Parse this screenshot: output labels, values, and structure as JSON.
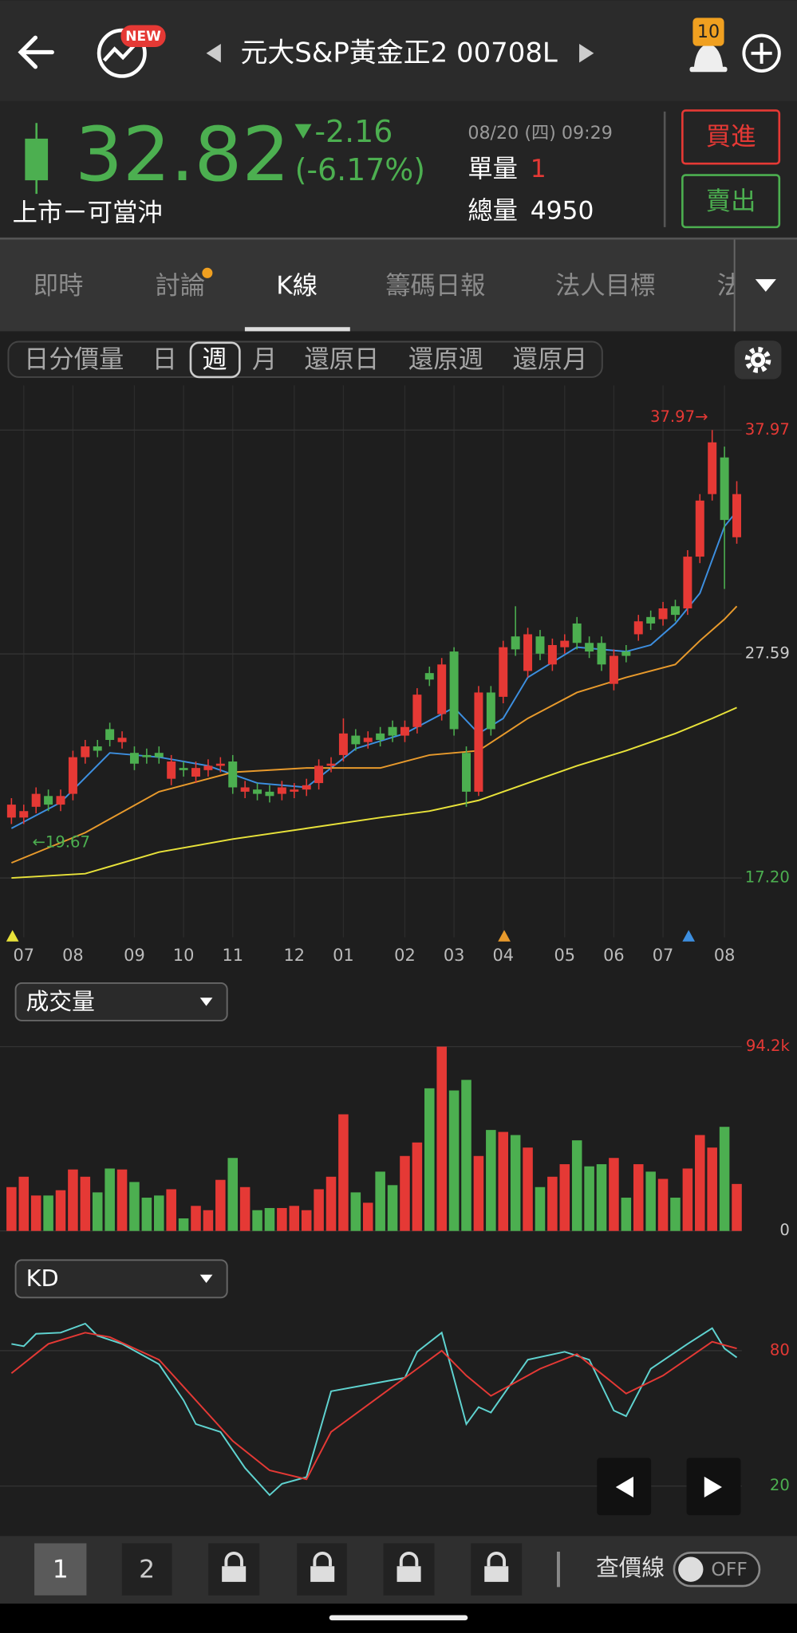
{
  "header": {
    "badge": "NEW",
    "title": "元大S&P黃金正2 00708L",
    "alerts": "10"
  },
  "quote": {
    "price": "32.82",
    "change": "-2.16",
    "change_pct": "(-6.17%)",
    "time": "08/20 (四) 09:29",
    "unit_label": "單量",
    "unit_volume": "1",
    "total_label": "總量",
    "total_volume": "4950",
    "market": "上市ㄧ可當沖",
    "buy": "買進",
    "sell": "賣出"
  },
  "tabs": [
    "即時",
    "討論",
    "K線",
    "籌碼日報",
    "法人目標",
    "法"
  ],
  "periods": [
    "日分價量",
    "日",
    "週",
    "月",
    "還原日",
    "還原週",
    "還原月"
  ],
  "bottom": {
    "pages": [
      "1",
      "2"
    ],
    "price_line": "查價線",
    "toggle": "OFF"
  },
  "chart_data": [
    {
      "type": "candlestick",
      "categories": [
        null,
        "07",
        null,
        null,
        null,
        "08",
        null,
        null,
        null,
        null,
        "09",
        null,
        null,
        null,
        "10",
        null,
        null,
        null,
        "11",
        null,
        null,
        null,
        null,
        "12",
        null,
        null,
        null,
        "01",
        null,
        null,
        null,
        null,
        "02",
        null,
        null,
        null,
        "03",
        null,
        null,
        null,
        "04",
        null,
        null,
        null,
        null,
        "05",
        null,
        null,
        null,
        "06",
        null,
        null,
        null,
        "07",
        null,
        null,
        null,
        null,
        "08",
        null
      ],
      "open": [
        20.0,
        20.0,
        20.5,
        21.0,
        20.6,
        21.1,
        22.8,
        23.3,
        24.1,
        23.5,
        23.0,
        22.9,
        23.0,
        21.8,
        22.3,
        21.9,
        22.2,
        22.4,
        22.6,
        21.2,
        21.3,
        21.2,
        21.1,
        21.2,
        21.3,
        21.6,
        22.4,
        22.9,
        23.8,
        23.5,
        23.9,
        24.2,
        23.8,
        24.2,
        26.7,
        24.8,
        27.7,
        23.0,
        21.2,
        25.8,
        25.6,
        28.4,
        26.8,
        28.4,
        27.1,
        27.9,
        29.0,
        28.1,
        28.1,
        26.2,
        27.7,
        28.5,
        29.3,
        29.2,
        29.8,
        29.7,
        32.1,
        35.0,
        36.7,
        33.0
      ],
      "high": [
        20.9,
        20.6,
        21.4,
        21.3,
        21.3,
        23.1,
        23.6,
        23.6,
        24.4,
        24.0,
        23.3,
        23.2,
        23.3,
        22.9,
        22.6,
        22.6,
        22.7,
        22.8,
        22.9,
        21.7,
        21.6,
        21.5,
        21.7,
        21.6,
        21.8,
        22.7,
        22.8,
        24.6,
        24.1,
        24.0,
        24.2,
        24.5,
        24.5,
        26.0,
        27.0,
        27.4,
        27.9,
        23.3,
        26.1,
        26.1,
        28.2,
        29.8,
        28.8,
        28.7,
        28.3,
        28.5,
        29.3,
        28.4,
        28.4,
        27.8,
        28.0,
        29.4,
        29.6,
        30.0,
        30.1,
        32.4,
        35.0,
        37.97,
        37.2,
        35.6
      ],
      "low": [
        19.7,
        19.7,
        20.2,
        20.3,
        20.3,
        20.8,
        22.5,
        22.8,
        23.3,
        23.2,
        22.2,
        22.5,
        22.5,
        21.5,
        21.9,
        21.6,
        21.9,
        22.1,
        21.1,
        20.9,
        20.8,
        20.7,
        20.8,
        20.9,
        21.0,
        21.3,
        22.1,
        22.6,
        23.1,
        23.2,
        23.3,
        23.5,
        23.5,
        23.9,
        26.1,
        24.5,
        23.8,
        20.5,
        21.0,
        23.8,
        25.3,
        27.5,
        26.5,
        27.3,
        26.8,
        27.6,
        27.8,
        27.4,
        26.8,
        25.9,
        27.2,
        28.2,
        28.7,
        28.9,
        29.1,
        29.4,
        31.8,
        34.7,
        30.6,
        32.7
      ],
      "close": [
        20.6,
        20.3,
        21.1,
        20.6,
        21.0,
        22.8,
        23.3,
        23.1,
        23.6,
        23.7,
        22.5,
        22.8,
        22.8,
        22.6,
        22.2,
        22.3,
        22.4,
        22.5,
        21.4,
        21.4,
        21.1,
        21.0,
        21.4,
        21.3,
        21.5,
        22.4,
        22.5,
        23.9,
        23.4,
        23.7,
        23.6,
        23.8,
        24.2,
        25.7,
        26.4,
        27.1,
        24.1,
        21.2,
        25.8,
        24.1,
        27.9,
        27.8,
        28.5,
        27.6,
        28.0,
        28.2,
        28.1,
        27.7,
        27.1,
        27.5,
        27.5,
        29.1,
        29.0,
        29.7,
        29.4,
        32.1,
        34.7,
        37.4,
        33.8,
        35.0
      ],
      "up_color": "#e53935",
      "down_color": "#4caf50",
      "ma": [
        {
          "color": "#3d8fe0",
          "x": [
            0,
            4,
            8,
            12,
            16,
            20,
            24,
            28,
            32,
            36,
            38,
            40,
            42,
            46,
            50,
            52,
            54,
            56,
            58,
            59
          ],
          "values": [
            19.5,
            20.7,
            23.0,
            22.8,
            22.4,
            21.6,
            21.4,
            23.2,
            23.9,
            25.1,
            23.9,
            24.6,
            26.5,
            27.9,
            27.7,
            28.0,
            29.0,
            30.4,
            33.5,
            34.2
          ]
        },
        {
          "color": "#e89a2c",
          "x": [
            0,
            6,
            12,
            18,
            24,
            30,
            34,
            38,
            42,
            46,
            50,
            54,
            56,
            58,
            59
          ],
          "values": [
            17.9,
            19.3,
            21.2,
            22.1,
            22.3,
            22.3,
            22.9,
            23.1,
            24.6,
            25.8,
            26.5,
            27.1,
            28.2,
            29.2,
            29.8
          ]
        },
        {
          "color": "#e8e23a",
          "x": [
            0,
            6,
            12,
            18,
            24,
            30,
            34,
            38,
            42,
            46,
            50,
            54,
            57,
            59
          ],
          "values": [
            17.2,
            17.4,
            18.4,
            19.0,
            19.5,
            20.0,
            20.3,
            20.8,
            21.6,
            22.4,
            23.1,
            23.9,
            24.6,
            25.1
          ]
        }
      ],
      "annotations": [
        {
          "text": "37.97→",
          "color": "#e53935"
        },
        {
          "text": "←19.67",
          "color": "#4caf50"
        }
      ],
      "ylim": [
        14.69,
        40.04
      ],
      "yticks": [
        {
          "value": 37.97,
          "label": "37.97"
        },
        27.59,
        {
          "value": 17.2,
          "label": "17.20"
        }
      ],
      "ytick_colors": [
        "#e53935",
        "#cccccc",
        "#4caf50"
      ],
      "grid": true
    },
    {
      "type": "bar",
      "title": "成交量",
      "values": [
        22.4,
        27.7,
        18.1,
        18.1,
        20.8,
        31.4,
        27.7,
        19.7,
        31.9,
        31.4,
        25.0,
        17.0,
        18.1,
        21.3,
        6.4,
        12.8,
        10.6,
        26.1,
        37.3,
        22.4,
        10.6,
        11.7,
        11.7,
        12.8,
        10.6,
        21.3,
        27.7,
        59.6,
        19.7,
        14.4,
        30.3,
        23.4,
        38.3,
        45.2,
        72.9,
        94.2,
        71.8,
        77.2,
        38.3,
        51.6,
        50.6,
        49.0,
        42.6,
        22.4,
        27.7,
        34.1,
        46.3,
        33.0,
        34.1,
        37.3,
        17.0,
        34.1,
        30.3,
        26.6,
        17.0,
        31.9,
        49.0,
        42.6,
        53.2,
        24.0
      ],
      "ylim": [
        0,
        94.2
      ],
      "yticks": [
        {
          "value": 94.2,
          "label": "94.2k"
        },
        0
      ],
      "ytick_colors": [
        "#e53935",
        "#cccccc"
      ],
      "grid": true
    },
    {
      "type": "line",
      "title": "KD",
      "series": [
        {
          "color": "#5fd3d0",
          "x": [
            0,
            1,
            2,
            4,
            6,
            7,
            9,
            12,
            14,
            15,
            17,
            19,
            21,
            22,
            24,
            26,
            29,
            32,
            33,
            35,
            37,
            38,
            39,
            42,
            45,
            47,
            49,
            50,
            52,
            55,
            57,
            58,
            59
          ],
          "values": [
            83,
            82,
            87.5,
            88,
            92,
            86.6,
            83,
            74,
            58,
            47.5,
            44,
            28,
            16,
            21,
            24,
            62,
            65,
            68,
            79.5,
            88,
            47.5,
            55,
            52.6,
            76,
            79.5,
            76,
            53.5,
            51,
            72,
            83,
            90,
            81,
            77
          ]
        },
        {
          "color": "#e53935",
          "x": [
            0,
            3,
            6,
            8,
            12,
            15,
            18,
            21,
            24,
            26,
            30,
            33,
            35,
            37,
            39,
            43,
            46,
            50,
            53,
            57,
            59
          ],
          "values": [
            70,
            83,
            88,
            86,
            76,
            58,
            40,
            27,
            23,
            44,
            60,
            72,
            80,
            69,
            60,
            72,
            78.5,
            61,
            69,
            84,
            81
          ]
        }
      ],
      "ylim": [
        10,
        100
      ],
      "yticks": [
        80,
        20
      ],
      "ytick_colors": [
        "#e53935",
        "#4caf50"
      ],
      "grid": true
    }
  ]
}
